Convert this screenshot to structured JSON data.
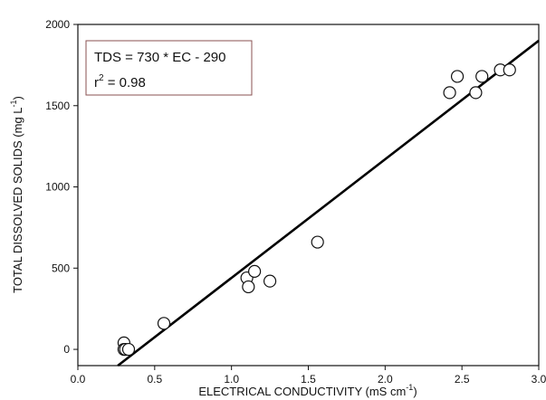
{
  "chart_data": {
    "type": "scatter",
    "title": "",
    "xlabel": "ELECTRICAL CONDUCTIVITY (mS cm",
    "xlabel_sup": "-1",
    "xlabel_end": ")",
    "ylabel": "TOTAL DISSOLVED SOLIDS (mg L",
    "ylabel_sup": "-1",
    "ylabel_end": ")",
    "xlim": [
      0.0,
      3.0
    ],
    "ylim": [
      -100,
      2000
    ],
    "x_ticks": [
      0.0,
      0.5,
      1.0,
      1.5,
      2.0,
      2.5,
      3.0
    ],
    "x_tick_labels": [
      "0.0",
      "0.5",
      "1.0",
      "1.5",
      "2.0",
      "2.5",
      "3.0"
    ],
    "y_ticks": [
      0,
      500,
      1000,
      1500,
      2000
    ],
    "y_tick_labels": [
      "0",
      "500",
      "1000",
      "1500",
      "2000"
    ],
    "grid": false,
    "legend": "none",
    "points": {
      "x": [
        0.3,
        0.3,
        0.31,
        0.33,
        0.56,
        1.1,
        1.11,
        1.15,
        1.25,
        1.56,
        2.42,
        2.47,
        2.59,
        2.63,
        2.75,
        2.81
      ],
      "y": [
        40,
        0,
        0,
        0,
        160,
        440,
        385,
        480,
        420,
        660,
        1580,
        1680,
        1580,
        1680,
        1720,
        1720
      ]
    },
    "regression": {
      "slope": 730,
      "intercept": -290,
      "equation_label": "TDS = 730 * EC - 290",
      "r2_prefix": "r",
      "r2_sup": "2",
      "r2_value": " = 0.98"
    },
    "colors": {
      "line": "#000000",
      "marker_stroke": "#111111",
      "marker_fill": "#ffffff",
      "annotation_border": "#8a5050"
    }
  }
}
